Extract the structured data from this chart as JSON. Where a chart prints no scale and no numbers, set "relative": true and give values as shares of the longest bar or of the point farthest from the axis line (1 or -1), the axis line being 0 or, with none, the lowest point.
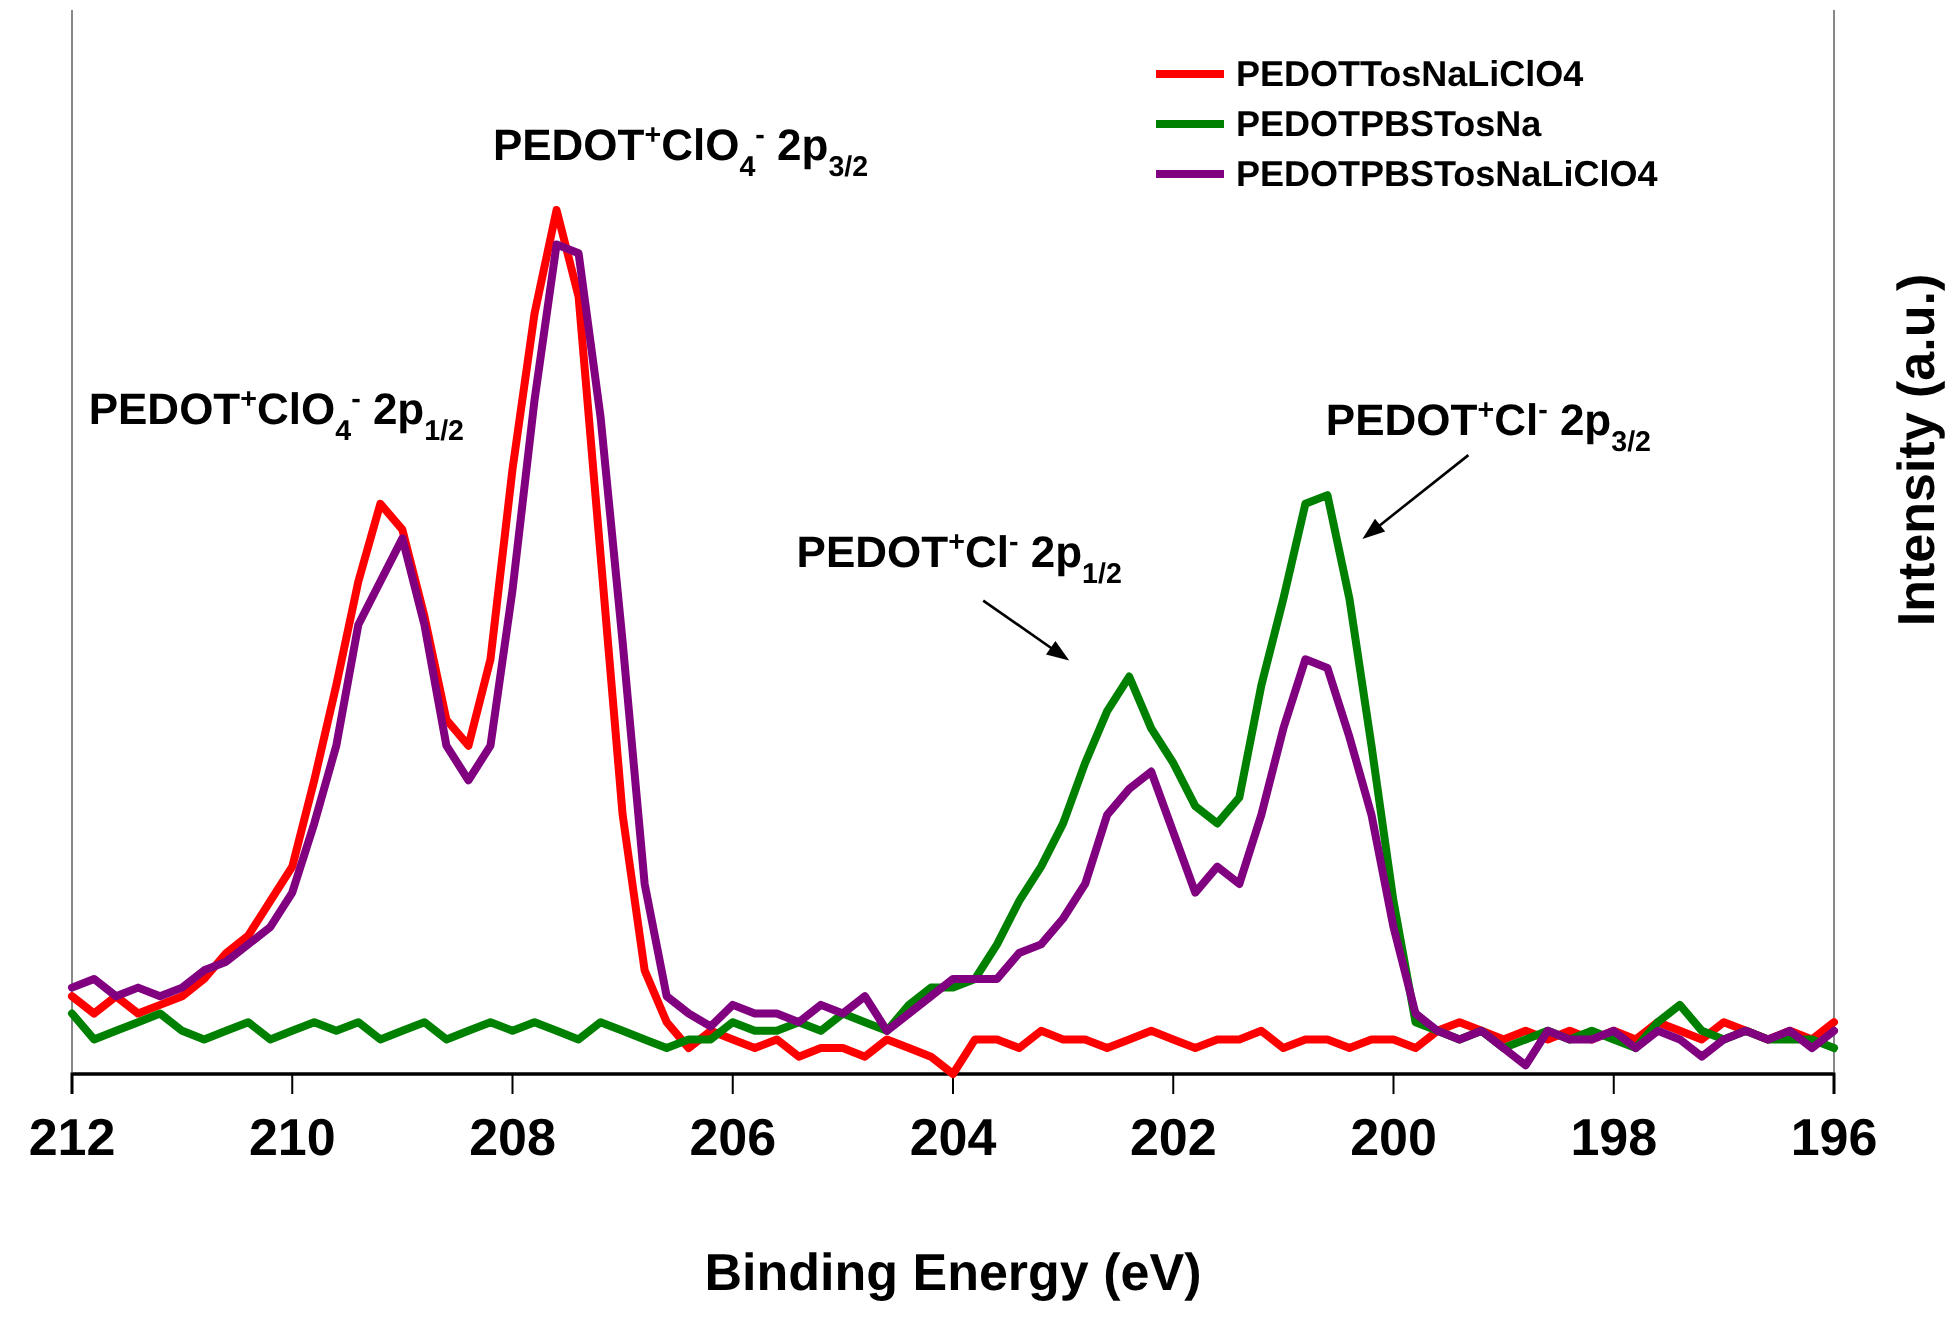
{
  "chart_data": {
    "type": "line",
    "relative": true,
    "xlabel": "Binding Energy (eV)",
    "ylabel": "Intensity (a.u.)",
    "xlim": [
      212,
      196
    ],
    "xticks": [
      212,
      210,
      208,
      206,
      204,
      202,
      200,
      198,
      196
    ],
    "legend": "top right",
    "grid": false,
    "marker": "none",
    "line_style": "solid",
    "x": [
      212,
      211.8,
      211.6,
      211.4,
      211.2,
      211,
      210.8,
      210.6,
      210.4,
      210.2,
      210,
      209.8,
      209.6,
      209.4,
      209.2,
      209,
      208.8,
      208.6,
      208.4,
      208.2,
      208,
      207.8,
      207.6,
      207.4,
      207.2,
      207,
      206.8,
      206.6,
      206.4,
      206.2,
      206,
      205.8,
      205.6,
      205.4,
      205.2,
      205,
      204.8,
      204.6,
      204.4,
      204.2,
      204,
      203.8,
      203.6,
      203.4,
      203.2,
      203,
      202.8,
      202.6,
      202.4,
      202.2,
      202,
      201.8,
      201.6,
      201.4,
      201.2,
      201,
      200.8,
      200.6,
      200.4,
      200.2,
      200,
      199.8,
      199.6,
      199.4,
      199.2,
      199,
      198.8,
      198.6,
      198.4,
      198.2,
      198,
      197.8,
      197.6,
      197.4,
      197.2,
      197,
      196.8,
      196.6,
      196.4,
      196.2,
      196
    ],
    "series": [
      {
        "name": "PEDOTTosNaLiClO4",
        "color": "#ff0000",
        "values": [
          0.09,
          0.07,
          0.09,
          0.07,
          0.08,
          0.09,
          0.11,
          0.14,
          0.16,
          0.2,
          0.24,
          0.34,
          0.45,
          0.57,
          0.66,
          0.63,
          0.53,
          0.41,
          0.38,
          0.48,
          0.7,
          0.88,
          1.0,
          0.9,
          0.6,
          0.3,
          0.12,
          0.06,
          0.03,
          0.05,
          0.04,
          0.03,
          0.04,
          0.02,
          0.03,
          0.03,
          0.02,
          0.04,
          0.03,
          0.02,
          0.0,
          0.04,
          0.04,
          0.03,
          0.05,
          0.04,
          0.04,
          0.03,
          0.04,
          0.05,
          0.04,
          0.03,
          0.04,
          0.04,
          0.05,
          0.03,
          0.04,
          0.04,
          0.03,
          0.04,
          0.04,
          0.03,
          0.05,
          0.06,
          0.05,
          0.04,
          0.05,
          0.04,
          0.05,
          0.04,
          0.05,
          0.04,
          0.06,
          0.05,
          0.04,
          0.06,
          0.05,
          0.04,
          0.05,
          0.04,
          0.06
        ]
      },
      {
        "name": "PEDOTPBSTosNa",
        "color": "#008000",
        "values": [
          0.07,
          0.04,
          0.05,
          0.06,
          0.07,
          0.05,
          0.04,
          0.05,
          0.06,
          0.04,
          0.05,
          0.06,
          0.05,
          0.06,
          0.04,
          0.05,
          0.06,
          0.04,
          0.05,
          0.06,
          0.05,
          0.06,
          0.05,
          0.04,
          0.06,
          0.05,
          0.04,
          0.03,
          0.04,
          0.04,
          0.06,
          0.05,
          0.05,
          0.06,
          0.05,
          0.07,
          0.06,
          0.05,
          0.08,
          0.1,
          0.1,
          0.11,
          0.15,
          0.2,
          0.24,
          0.29,
          0.36,
          0.42,
          0.46,
          0.4,
          0.36,
          0.31,
          0.29,
          0.32,
          0.45,
          0.55,
          0.66,
          0.67,
          0.55,
          0.38,
          0.2,
          0.06,
          0.05,
          0.04,
          0.05,
          0.03,
          0.04,
          0.05,
          0.04,
          0.05,
          0.04,
          0.03,
          0.06,
          0.08,
          0.05,
          0.04,
          0.05,
          0.04,
          0.04,
          0.04,
          0.03
        ]
      },
      {
        "name": "PEDOTPBSTosNaLiClO4",
        "color": "#800080",
        "values": [
          0.1,
          0.11,
          0.09,
          0.1,
          0.09,
          0.1,
          0.12,
          0.13,
          0.15,
          0.17,
          0.21,
          0.29,
          0.38,
          0.52,
          0.57,
          0.62,
          0.52,
          0.38,
          0.34,
          0.38,
          0.56,
          0.78,
          0.96,
          0.95,
          0.76,
          0.5,
          0.22,
          0.09,
          0.07,
          0.055,
          0.08,
          0.07,
          0.07,
          0.06,
          0.08,
          0.07,
          0.09,
          0.05,
          0.07,
          0.09,
          0.11,
          0.11,
          0.11,
          0.14,
          0.15,
          0.18,
          0.22,
          0.3,
          0.33,
          0.35,
          0.28,
          0.21,
          0.24,
          0.22,
          0.3,
          0.4,
          0.48,
          0.47,
          0.39,
          0.3,
          0.17,
          0.07,
          0.05,
          0.04,
          0.05,
          0.03,
          0.01,
          0.05,
          0.04,
          0.04,
          0.05,
          0.03,
          0.05,
          0.04,
          0.02,
          0.04,
          0.05,
          0.04,
          0.05,
          0.03,
          0.05
        ]
      }
    ],
    "annotations": [
      {
        "text": "PEDOT$^{+}$ClO$_{4}$$^{-}$ 2p$_{3/2}$",
        "x": 207.6,
        "y": 1.0
      },
      {
        "text": "PEDOT$^{+}$ClO$_{4}$$^{-}$ 2p$_{1/2}$",
        "x": 209.2,
        "y": 0.66
      },
      {
        "text": "PEDOT$^{+}$Cl$^{-}$ 2p$_{1/2}$",
        "x": 202.4,
        "y": 0.46
      },
      {
        "text": "PEDOT$^{+}$Cl$^{-}$ 2p$_{3/2}$",
        "x": 200.7,
        "y": 0.67
      }
    ]
  }
}
